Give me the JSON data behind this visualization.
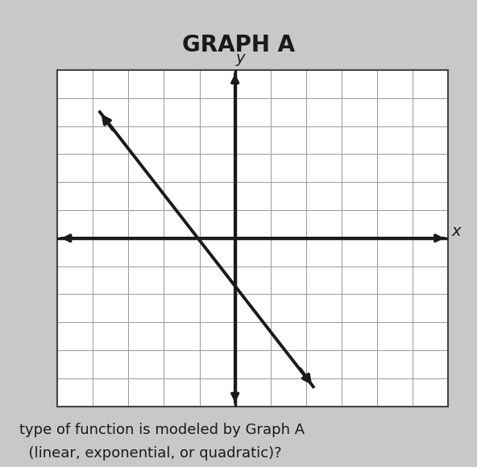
{
  "title": "GRAPH A",
  "title_fontsize": 20,
  "background_color": "#c8c8c8",
  "plot_bg_color": "#ffffff",
  "grid_color": "#999999",
  "grid_outer_color": "#444444",
  "axis_color": "#1a1a1a",
  "line_color": "#1a1a1a",
  "xlabel": "x",
  "ylabel": "y",
  "xlim": [
    -5,
    6
  ],
  "ylim": [
    -6,
    6
  ],
  "x_grid_min": -5,
  "x_grid_max": 6,
  "y_grid_min": -6,
  "y_grid_max": 6,
  "line_x1": -3.8,
  "line_y1": 4.5,
  "line_x2": 2.2,
  "line_y2": -5.3,
  "line_width": 2.8,
  "axis_linewidth": 2.5,
  "subtitle_text": "type of function is modeled by Graph A",
  "subtitle_fontsize": 13
}
